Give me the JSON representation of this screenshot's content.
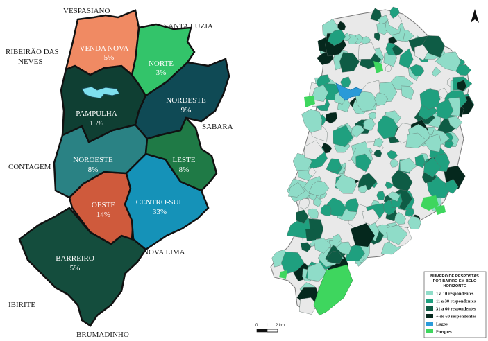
{
  "left_map": {
    "regions": [
      {
        "name": "VENDA NOVA",
        "pct": "5%",
        "color": "#f08a63"
      },
      {
        "name": "NORTE",
        "pct": "3%",
        "color": "#33c46a"
      },
      {
        "name": "PAMPULHA",
        "pct": "15%",
        "color": "#0f3f33"
      },
      {
        "name": "NORDESTE",
        "pct": "9%",
        "color": "#0f4a55"
      },
      {
        "name": "NOROESTE",
        "pct": "8%",
        "color": "#2a8284"
      },
      {
        "name": "LESTE",
        "pct": "8%",
        "color": "#1f7a46"
      },
      {
        "name": "OESTE",
        "pct": "14%",
        "color": "#cf5a3c"
      },
      {
        "name": "CENTRO-SUL",
        "pct": "33%",
        "color": "#1592b8"
      },
      {
        "name": "BARREIRO",
        "pct": "5%",
        "color": "#144d3d"
      }
    ],
    "neighbors": [
      "VESPASIANO",
      "SANTA LUZIA",
      "RIBEIRÃO DAS",
      "NEVES",
      "SABARÁ",
      "CONTAGEM",
      "NOVA LIMA",
      "IBIRITÉ",
      "BRUMADINHO"
    ]
  },
  "right_map": {
    "north_arrow": "north-arrow-icon",
    "scale": {
      "ticks": [
        "0",
        "1",
        "2 km"
      ]
    },
    "legend": {
      "title_lines": [
        "NÚMERO DE RESPOSTAS",
        "POR BAIRRO EM BELO",
        "HORIZONTE"
      ],
      "items": [
        {
          "label": "1 a 10 respondentes",
          "color": "#8fdcc8"
        },
        {
          "label": "11 a 30 respondentes",
          "color": "#1fa07f"
        },
        {
          "label": "31 a 60 respondentes",
          "color": "#0e5c45"
        },
        {
          "label": "+ de 60 respondentes",
          "color": "#05281d"
        },
        {
          "label": "Lagos",
          "color": "#2a9ad8"
        },
        {
          "label": "Parques",
          "color": "#3ed65e"
        }
      ]
    }
  }
}
